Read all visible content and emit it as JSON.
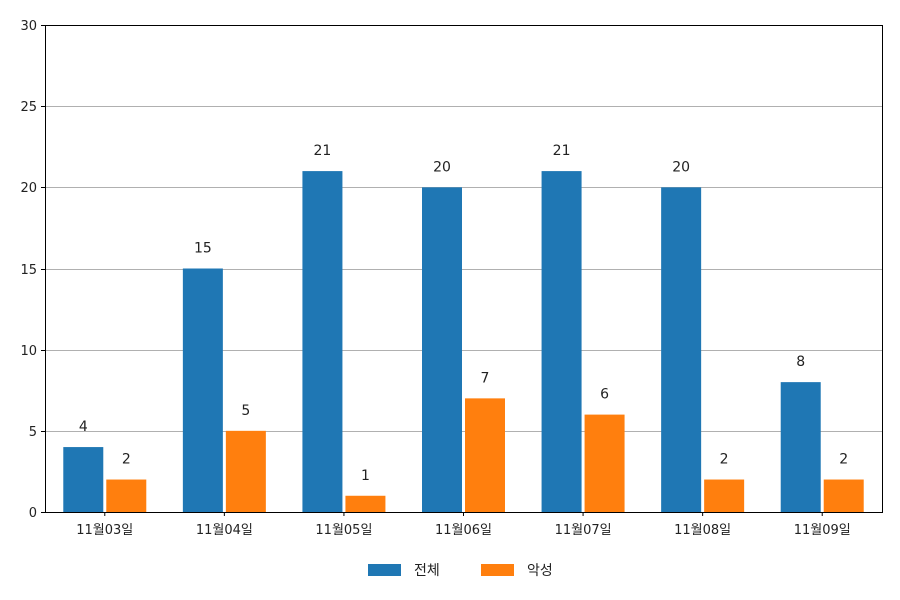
{
  "chart_data": {
    "type": "bar",
    "categories": [
      "11월03일",
      "11월04일",
      "11월05일",
      "11월06일",
      "11월07일",
      "11월08일",
      "11월09일"
    ],
    "series": [
      {
        "name": "전체",
        "values": [
          4,
          15,
          21,
          20,
          21,
          20,
          8
        ],
        "color": "#1f77b4"
      },
      {
        "name": "악성",
        "values": [
          2,
          5,
          1,
          7,
          6,
          2,
          2
        ],
        "color": "#ff7f0e"
      }
    ],
    "ylim": [
      0,
      30
    ],
    "yticks": [
      0,
      5,
      10,
      15,
      20,
      25,
      30
    ],
    "grid": "horizontal",
    "legend_position": "bottom-center",
    "data_labels": true
  }
}
